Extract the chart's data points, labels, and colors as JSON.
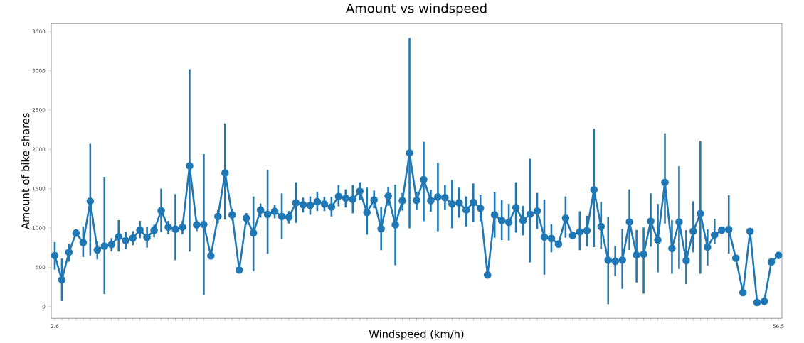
{
  "chart_data": {
    "type": "line",
    "title": "Amount vs windspeed",
    "xlabel": "Windspeed (km/h)",
    "ylabel": "Amount of bike shares",
    "categories": [
      "2.6",
      null,
      null,
      null,
      null,
      null,
      null,
      null,
      null,
      null,
      null,
      null,
      null,
      null,
      null,
      null,
      null,
      null,
      null,
      null,
      null,
      null,
      null,
      null,
      null,
      null,
      null,
      null,
      null,
      null,
      null,
      null,
      null,
      null,
      null,
      null,
      null,
      null,
      null,
      null,
      null,
      null,
      null,
      null,
      null,
      null,
      null,
      null,
      null,
      null,
      null,
      null,
      null,
      null,
      null,
      null,
      null,
      null,
      null,
      null,
      null,
      null,
      null,
      null,
      null,
      null,
      null,
      null,
      null,
      null,
      null,
      null,
      null,
      null,
      null,
      null,
      null,
      null,
      null,
      null,
      null,
      null,
      null,
      null,
      null,
      null,
      null,
      null,
      null,
      null,
      null,
      null,
      null,
      null,
      null,
      null,
      null,
      null,
      null,
      null,
      null,
      null,
      "56.5"
    ],
    "series": [
      {
        "color": "#1f77b4",
        "values": [
          650,
          340,
          690,
          935,
          815,
          1340,
          720,
          770,
          790,
          890,
          840,
          870,
          975,
          880,
          970,
          1220,
          1010,
          985,
          1010,
          1790,
          1040,
          1045,
          645,
          1146,
          1700,
          1167,
          465,
          1125,
          936,
          1227,
          1173,
          1212,
          1146,
          1137,
          1320,
          1296,
          1287,
          1335,
          1305,
          1266,
          1401,
          1380,
          1365,
          1467,
          1197,
          1356,
          990,
          1407,
          1041,
          1347,
          1956,
          1350,
          1617,
          1347,
          1395,
          1386,
          1305,
          1320,
          1227,
          1326,
          1251,
          402,
          1167,
          1095,
          1071,
          1260,
          1095,
          1176,
          1215,
          885,
          867,
          795,
          1125,
          906,
          951,
          966,
          1485,
          1017,
          591,
          576,
          591,
          1077,
          657,
          666,
          1086,
          846,
          1581,
          741,
          1077,
          585,
          960,
          1182,
          756,
          912,
          972,
          981,
          615,
          177,
          957,
          51,
          66,
          567,
          651
        ],
        "errors": [
          [
            470,
            820
          ],
          [
            70,
            610
          ],
          [
            570,
            800
          ],
          null,
          [
            630,
            1020
          ],
          [
            650,
            2070
          ],
          [
            600,
            830
          ],
          [
            160,
            1650
          ],
          [
            700,
            870
          ],
          [
            700,
            1100
          ],
          [
            730,
            950
          ],
          [
            780,
            960
          ],
          [
            870,
            1090
          ],
          [
            750,
            1010
          ],
          [
            880,
            1040
          ],
          [
            950,
            1500
          ],
          [
            920,
            1090
          ],
          [
            590,
            1430
          ],
          [
            920,
            1090
          ],
          [
            700,
            3020
          ],
          [
            960,
            1100
          ],
          [
            145,
            1940
          ],
          null,
          [
            1060,
            1230
          ],
          [
            1107,
            2330
          ],
          [
            1100,
            1240
          ],
          null,
          [
            1040,
            1190
          ],
          [
            447,
            1400
          ],
          [
            1131,
            1311
          ],
          [
            672,
            1740
          ],
          [
            1122,
            1296
          ],
          [
            861,
            1440
          ],
          [
            1056,
            1215
          ],
          [
            1065,
            1581
          ],
          [
            1197,
            1386
          ],
          [
            1167,
            1401
          ],
          [
            1215,
            1461
          ],
          [
            1215,
            1395
          ],
          [
            1146,
            1395
          ],
          [
            1275,
            1545
          ],
          [
            1260,
            1491
          ],
          [
            1185,
            1545
          ],
          [
            1356,
            1581
          ],
          [
            915,
            1512
          ],
          [
            1251,
            1476
          ],
          [
            717,
            1266
          ],
          [
            1281,
            1521
          ],
          [
            525,
            1551
          ],
          [
            1221,
            1446
          ],
          [
            996,
            3417
          ],
          [
            1227,
            1461
          ],
          [
            1086,
            2097
          ],
          [
            1206,
            1485
          ],
          [
            957,
            1827
          ],
          [
            1227,
            1545
          ],
          [
            996,
            1611
          ],
          [
            1131,
            1512
          ],
          [
            1020,
            1401
          ],
          [
            1077,
            1566
          ],
          [
            1086,
            1425
          ],
          null,
          [
            876,
            1455
          ],
          [
            846,
            1356
          ],
          [
            840,
            1305
          ],
          [
            942,
            1581
          ],
          [
            906,
            1281
          ],
          [
            561,
            1881
          ],
          [
            987,
            1446
          ],
          [
            405,
            1362
          ],
          [
            690,
            1047
          ],
          null,
          [
            876,
            1401
          ],
          null,
          [
            717,
            1212
          ],
          [
            765,
            1155
          ],
          [
            756,
            2265
          ],
          [
            735,
            1332
          ],
          [
            30,
            1140
          ],
          [
            387,
            771
          ],
          [
            225,
            987
          ],
          [
            720,
            1491
          ],
          [
            306,
            975
          ],
          [
            165,
            1005
          ],
          [
            762,
            1440
          ],
          [
            435,
            1305
          ],
          [
            1056,
            2205
          ],
          [
            417,
            1101
          ],
          [
            477,
            1785
          ],
          [
            285,
            972
          ],
          [
            690,
            1341
          ],
          [
            417,
            2106
          ],
          [
            522,
            981
          ],
          [
            792,
            1116
          ],
          null,
          [
            672,
            1416
          ],
          null,
          null,
          null,
          null,
          null,
          null,
          null
        ]
      }
    ],
    "ylim": [
      -150,
      3600
    ],
    "yticks": [
      0,
      500,
      1000,
      1500,
      2000,
      2500,
      3000,
      3500
    ],
    "marker": "circle",
    "line_style": "solid"
  }
}
